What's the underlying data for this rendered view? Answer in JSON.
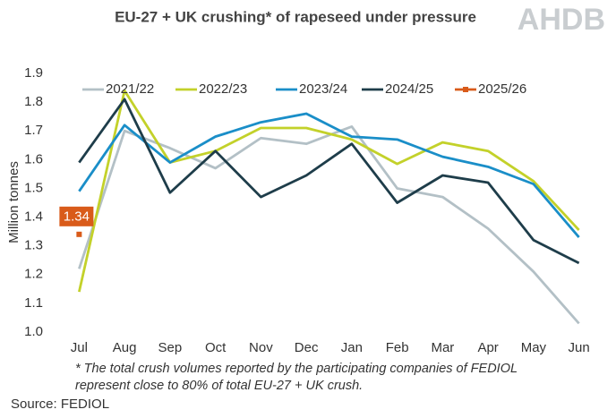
{
  "chart_data": {
    "type": "line",
    "title": "EU-27 + UK crushing* of rapeseed under pressure",
    "logo": "AHDB",
    "y_label": "Million tonnes",
    "footnote": [
      "* The total crush volumes reported by the participating companies of FEDIOL",
      "represent close to 80% of total EU-27 + UK crush."
    ],
    "source": "Source: FEDIOL",
    "categories": [
      "Jul",
      "Aug",
      "Sep",
      "Oct",
      "Nov",
      "Dec",
      "Jan",
      "Feb",
      "Mar",
      "Apr",
      "May",
      "Jun"
    ],
    "ylim": [
      1.0,
      1.9
    ],
    "yticks": [
      {
        "value": 1,
        "label": "1.0"
      },
      1.1,
      1.2,
      1.3,
      1.4,
      1.5,
      1.6,
      1.7,
      1.8,
      1.9
    ],
    "grid": false,
    "legend": "top",
    "series": [
      {
        "name": "2021/22",
        "color": "#b3c0c6",
        "values": [
          1.22,
          1.7,
          1.64,
          1.57,
          1.675,
          1.655,
          1.715,
          1.5,
          1.47,
          1.36,
          1.21,
          1.03
        ]
      },
      {
        "name": "2022/23",
        "color": "#c3d12a",
        "values": [
          1.14,
          1.84,
          1.59,
          1.63,
          1.71,
          1.71,
          1.67,
          1.585,
          1.66,
          1.63,
          1.525,
          1.355
        ]
      },
      {
        "name": "2023/24",
        "color": "#1a8ec8",
        "values": [
          1.49,
          1.72,
          1.59,
          1.68,
          1.73,
          1.76,
          1.68,
          1.67,
          1.61,
          1.575,
          1.515,
          1.33
        ]
      },
      {
        "name": "2024/25",
        "color": "#1e3d4a",
        "values": [
          1.59,
          1.81,
          1.485,
          1.63,
          1.47,
          1.545,
          1.655,
          1.45,
          1.545,
          1.52,
          1.32,
          1.24
        ]
      },
      {
        "name": "2025/26",
        "color": "#d95b1a",
        "marker": "square",
        "values": [
          1.34,
          null,
          null,
          null,
          null,
          null,
          null,
          null,
          null,
          null,
          null,
          null
        ],
        "value_labels": [
          "1.34",
          null,
          null,
          null,
          null,
          null,
          null,
          null,
          null,
          null,
          null,
          null
        ]
      }
    ]
  }
}
